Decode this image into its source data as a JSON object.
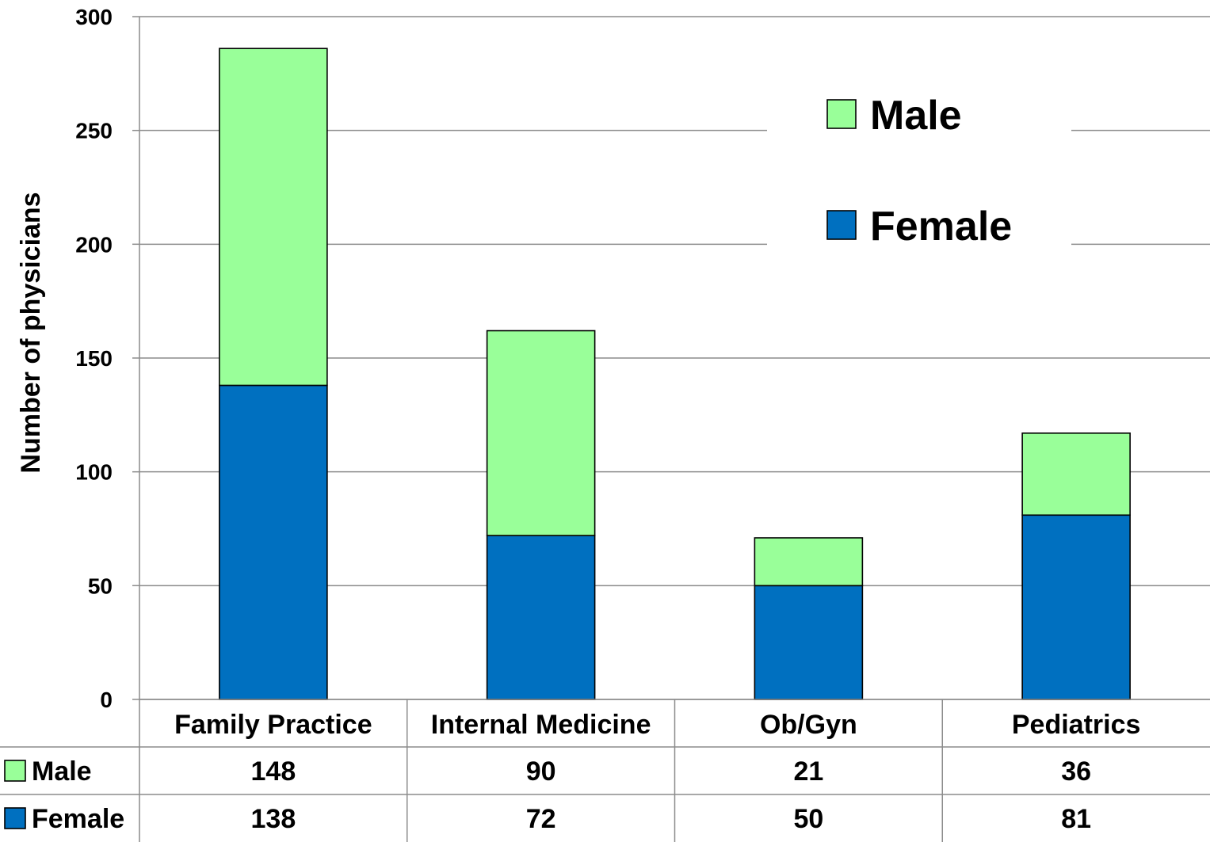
{
  "chart_data": {
    "type": "bar",
    "stacked": true,
    "title": "",
    "ylabel": "Number of physicians",
    "xlabel": "",
    "ylim": [
      0,
      300
    ],
    "yticks": [
      0,
      50,
      100,
      150,
      200,
      250,
      300
    ],
    "grid": true,
    "legend_position": "top-right",
    "data_table": true,
    "categories": [
      "Family Practice",
      "Internal Medicine",
      "Ob/Gyn",
      "Pediatrics"
    ],
    "series": [
      {
        "name": "Female",
        "values": [
          138,
          72,
          50,
          81
        ],
        "color": "#0070c0"
      },
      {
        "name": "Male",
        "values": [
          148,
          90,
          21,
          36
        ],
        "color": "#99ff99"
      }
    ]
  }
}
